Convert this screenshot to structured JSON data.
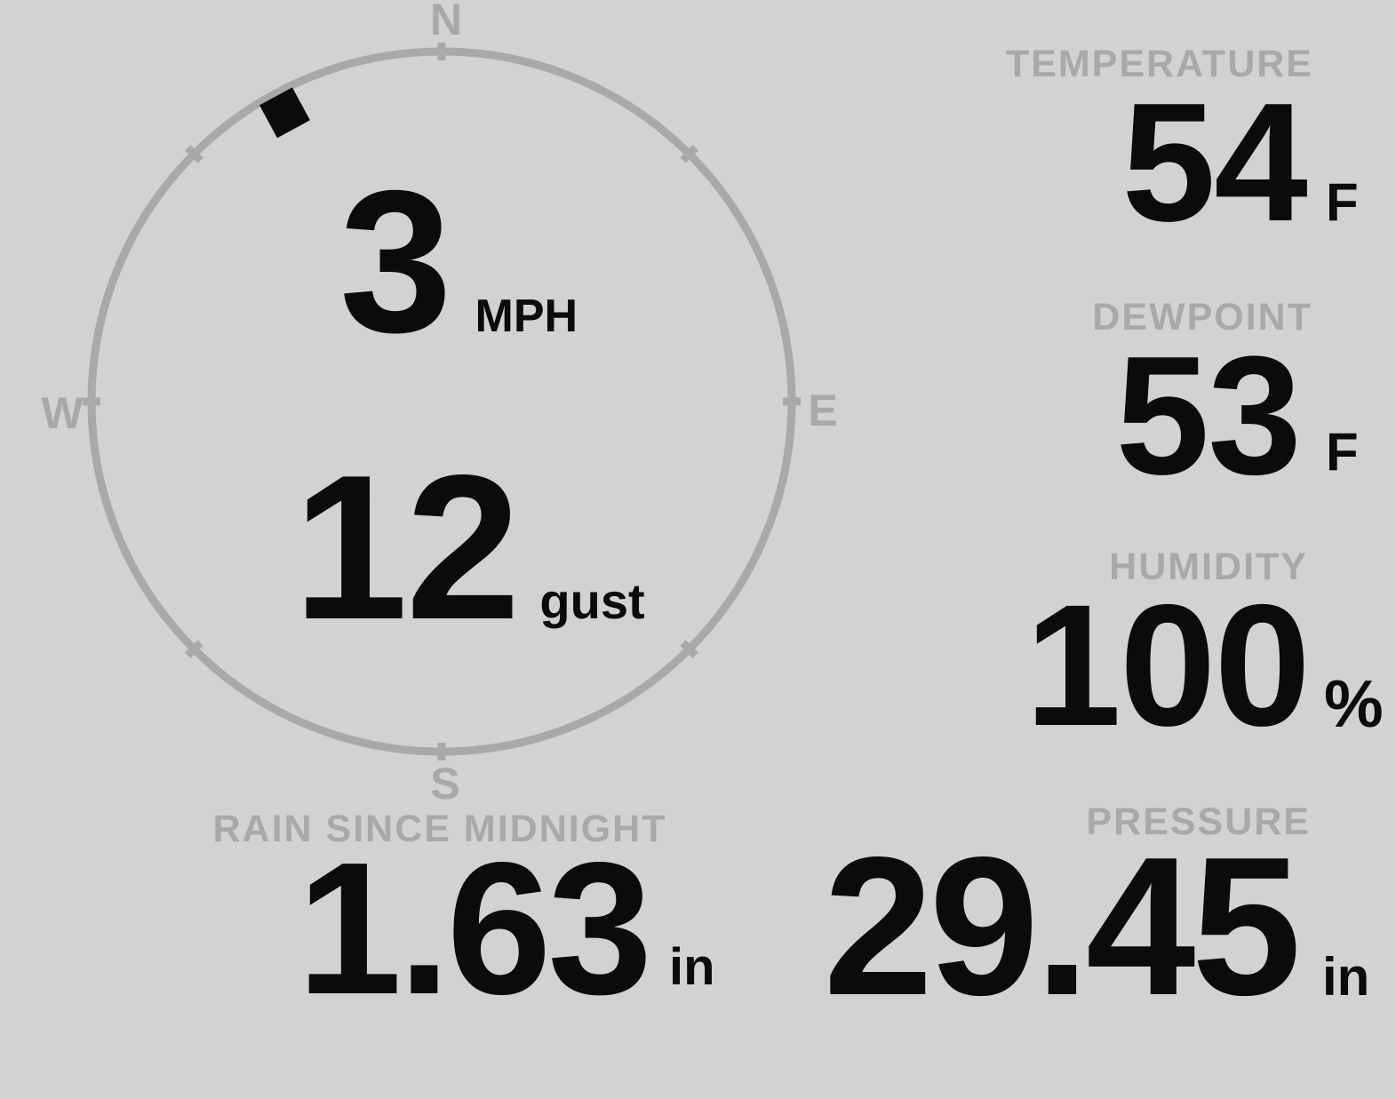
{
  "colors": {
    "background": "#d2d2d2",
    "muted": "#a9a9a9",
    "value_text": "#0b0b0b"
  },
  "compass": {
    "cardinal": {
      "north": "N",
      "east": "E",
      "south": "S",
      "west": "W"
    },
    "wind_speed": {
      "value": "3",
      "unit": "MPH"
    },
    "wind_gust": {
      "value": "12",
      "unit": "gust"
    },
    "direction_deg": 331.5
  },
  "metrics": {
    "temperature": {
      "label": "TEMPERATURE",
      "value": "54",
      "unit": "F"
    },
    "dewpoint": {
      "label": "DEWPOINT",
      "value": "53",
      "unit": "F"
    },
    "humidity": {
      "label": "HUMIDITY",
      "value": "100",
      "unit": "%"
    },
    "rain": {
      "label": "RAIN SINCE MIDNIGHT",
      "value": "1.63",
      "unit": "in"
    },
    "pressure": {
      "label": "PRESSURE",
      "value": "29.45",
      "unit": "in"
    }
  }
}
